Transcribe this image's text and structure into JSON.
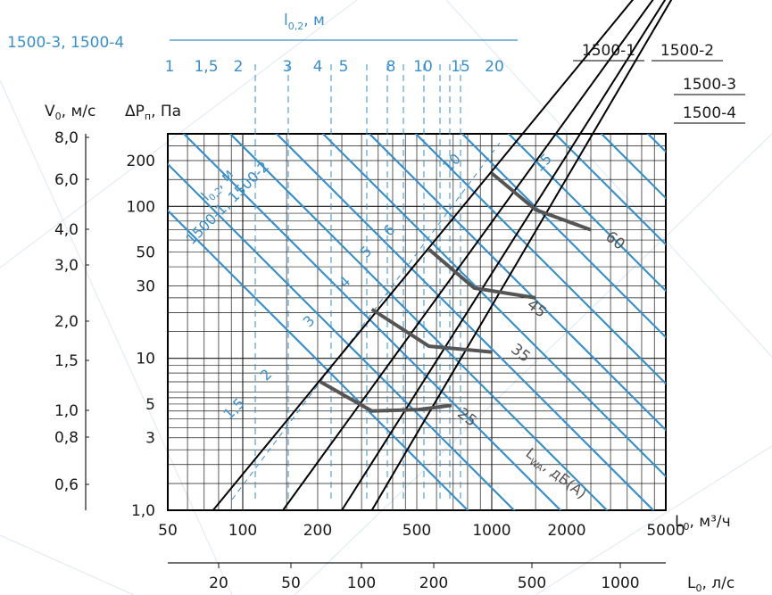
{
  "chart_data": {
    "type": "line",
    "x_axis_m3h": {
      "label_main": "L",
      "label_sub": "0",
      "label_unit": ", м³/ч",
      "scale": "log",
      "range": [
        50,
        5000
      ],
      "ticks": [
        "50",
        "100",
        "200",
        "500",
        "1000",
        "2000",
        "5000"
      ],
      "tick_values": [
        50,
        100,
        200,
        500,
        1000,
        2000,
        5000
      ]
    },
    "x_axis_ls": {
      "label_main": "L",
      "label_sub": "0",
      "label_unit": ", л/с",
      "scale": "log",
      "ticks": [
        "20",
        "50",
        "100",
        "200",
        "500",
        "1000"
      ],
      "tick_values": [
        20,
        50,
        100,
        200,
        500,
        1000
      ]
    },
    "y_axis_pressure": {
      "label_main": "ΔP",
      "label_sub": "п",
      "label_unit": ", Па",
      "scale": "log",
      "range": [
        1,
        300
      ],
      "ticks": [
        "200",
        "100",
        "50",
        "30",
        "10",
        "5",
        "3",
        "1,0"
      ],
      "tick_values": [
        200,
        100,
        50,
        30,
        10,
        5,
        3,
        1
      ]
    },
    "y_axis_velocity": {
      "label_main": "V",
      "label_sub": "0",
      "label_unit": ", м/с",
      "ticks": [
        "8,0",
        "6,0",
        "4,0",
        "3,0",
        "2,0",
        "1,5",
        "1,0",
        "0,8",
        "0,6"
      ]
    },
    "top_axis": {
      "label_main": "l",
      "label_sub": "0,2",
      "label_unit": ", м",
      "series_label": "1500-3, 1500-4",
      "ticks": [
        "1",
        "1,5",
        "2",
        "3",
        "4",
        "5",
        "8",
        "10",
        "15",
        "20"
      ],
      "tick_values": [
        1,
        1.5,
        2,
        3,
        4,
        5,
        8,
        10,
        15,
        20
      ]
    },
    "series": [
      {
        "name": "1500-1",
        "points": [
          [
            76,
            1
          ],
          [
            1000,
            170
          ]
        ]
      },
      {
        "name": "1500-2",
        "points": [
          [
            145,
            1
          ],
          [
            1900,
            170
          ]
        ]
      },
      {
        "name": "1500-3",
        "points": [
          [
            250,
            1
          ],
          [
            2900,
            170
          ]
        ]
      },
      {
        "name": "1500-4",
        "points": [
          [
            330,
            1
          ],
          [
            3800,
            170
          ]
        ]
      }
    ],
    "noise_curves": [
      {
        "label": "25",
        "points": [
          [
            205,
            7
          ],
          [
            330,
            4.5
          ],
          [
            510,
            4.6
          ],
          [
            690,
            4.9
          ]
        ]
      },
      {
        "label": "35",
        "points": [
          [
            330,
            21
          ],
          [
            560,
            12
          ],
          [
            1000,
            11
          ]
        ]
      },
      {
        "label": "45",
        "points": [
          [
            560,
            52
          ],
          [
            850,
            29
          ],
          [
            1500,
            25
          ]
        ]
      },
      {
        "label": "60",
        "points": [
          [
            1000,
            165
          ],
          [
            1500,
            95
          ],
          [
            2500,
            70
          ]
        ]
      }
    ],
    "noise_label": "L",
    "noise_label_sub": "WA",
    "noise_label_unit": ", дБ(А)",
    "throw_lines_left": {
      "label_main": "l",
      "label_sub": "0,2",
      "label_unit": ", м",
      "series_label": "1500-1, 1500-2",
      "labels": [
        "1,5",
        "2",
        "3",
        "4",
        "5",
        "6",
        "10",
        "15"
      ]
    },
    "colors": {
      "grid": "#1a1a1a",
      "series": "#000000",
      "noise": "#555555",
      "blue": "#3a8fc9",
      "background_lines": "#dce8f3"
    }
  }
}
